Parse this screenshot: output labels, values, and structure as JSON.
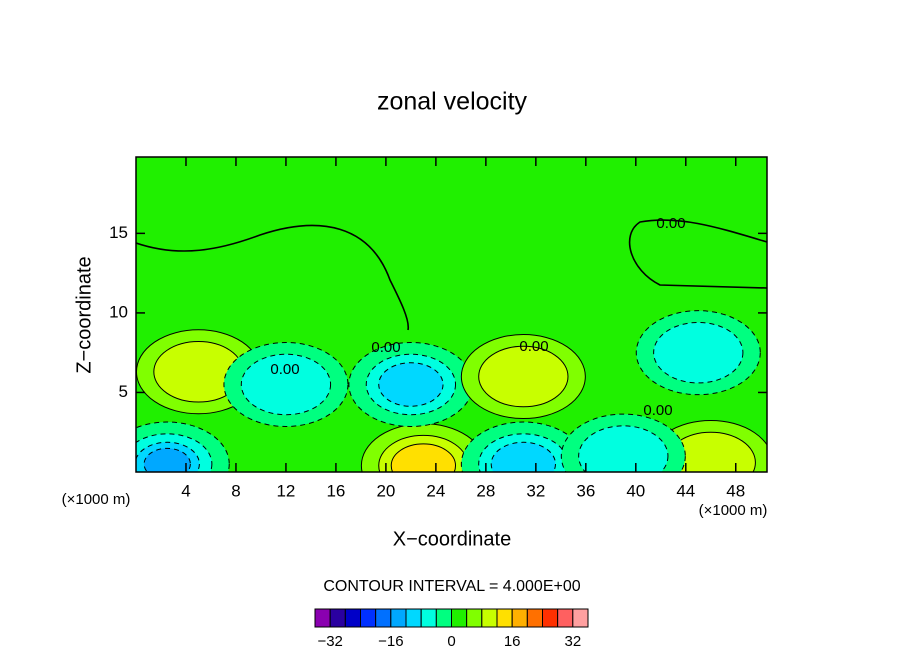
{
  "chart_data": {
    "type": "contour",
    "title": "zonal velocity",
    "xlabel": "X−coordinate",
    "ylabel": "Z−coordinate",
    "unit_labels": [
      "(×1000 m)",
      "(×1000 m)"
    ],
    "xlim": [
      0,
      50.5
    ],
    "ylim": [
      0,
      19.8
    ],
    "xticks": [
      4,
      8,
      12,
      16,
      20,
      24,
      28,
      32,
      36,
      40,
      44,
      48
    ],
    "yticks": [
      5,
      10,
      15
    ],
    "background_value": 2,
    "blobs": [
      {
        "x": 5,
        "y": 6.3,
        "value": 10
      },
      {
        "x": 2.5,
        "y": 0.5,
        "value": -14
      },
      {
        "x": 23,
        "y": 0.4,
        "value": 14
      },
      {
        "x": 22,
        "y": 5.5,
        "value": -10
      },
      {
        "x": 31,
        "y": 6,
        "value": 10
      },
      {
        "x": 31,
        "y": 0.5,
        "value": -10
      },
      {
        "x": 45,
        "y": 7.5,
        "value": -6
      },
      {
        "x": 46,
        "y": 0.6,
        "value": 10
      },
      {
        "x": 12,
        "y": 5.5,
        "value": -5
      },
      {
        "x": 39,
        "y": 1,
        "value": -6
      }
    ],
    "contour_labels": [
      "0.00",
      "0.00",
      "0.00",
      "0.00",
      "0.00"
    ],
    "contour_interval": "CONTOUR INTERVAL = 4.000E+00",
    "colorbar": {
      "levels": [
        -36,
        -32,
        -28,
        -24,
        -20,
        -16,
        -12,
        -8,
        -4,
        0,
        4,
        8,
        12,
        16,
        20,
        24,
        28,
        32,
        36
      ],
      "colors": [
        "#8a00b0",
        "#2a00a0",
        "#0000c8",
        "#0030ff",
        "#0070ff",
        "#00a8ff",
        "#00d8ff",
        "#00ffe0",
        "#00ff80",
        "#20f000",
        "#80ff00",
        "#c8ff00",
        "#ffe000",
        "#ffb000",
        "#ff7000",
        "#ff3000",
        "#ff6060",
        "#ffa0a0"
      ],
      "ticks": [
        {
          "value": -32,
          "label": "−32"
        },
        {
          "value": -16,
          "label": "−16"
        },
        0,
        16,
        32
      ]
    }
  }
}
